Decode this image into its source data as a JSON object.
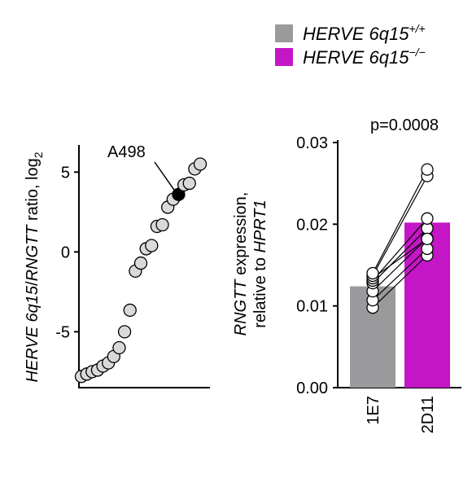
{
  "colors": {
    "wt": "#9a9a9c",
    "ko": "#c416c6",
    "point_fill": "#d9d9d9",
    "highlight": "#000000",
    "axis": "#000000"
  },
  "legend": {
    "items": [
      {
        "label": "HERVE 6q15",
        "sup": "+/+",
        "color_key": "wt"
      },
      {
        "label": "HERVE 6q15",
        "sup": "−/−",
        "color_key": "ko"
      }
    ]
  },
  "chart_data": [
    {
      "type": "scatter",
      "ylabel_parts": [
        {
          "text": "HERVE 6q15",
          "italic": true
        },
        {
          "text": "/",
          "italic": false
        },
        {
          "text": "RNGTT",
          "italic": true
        },
        {
          "text": " ratio, log",
          "italic": false
        },
        {
          "text": "2",
          "sub": true
        }
      ],
      "yticks": [
        {
          "v": 5,
          "label": "5"
        },
        {
          "v": 0,
          "label": "0"
        },
        {
          "v": -5,
          "label": "-5"
        }
      ],
      "ylim": [
        -8.5,
        6.7
      ],
      "values": [
        -7.8,
        -7.65,
        -7.5,
        -7.4,
        -7.15,
        -6.95,
        -6.55,
        -6.0,
        -5.0,
        -3.65,
        -1.2,
        -0.7,
        0.2,
        0.4,
        1.6,
        1.7,
        2.8,
        3.3,
        3.6,
        4.2,
        4.3,
        5.2,
        5.5
      ],
      "highlight_index": 18,
      "annotation": "A498"
    },
    {
      "type": "bar",
      "title": "p=0.0008",
      "ylabel_lines": [
        [
          {
            "text": "RNGTT",
            "italic": true
          },
          {
            "text": " expression,",
            "italic": false
          }
        ],
        [
          {
            "text": "relative to ",
            "italic": false
          },
          {
            "text": "HPRT1",
            "italic": true
          }
        ]
      ],
      "categories": [
        "1E7",
        "2D11"
      ],
      "values": [
        0.0124,
        0.0202
      ],
      "ylim": [
        0,
        0.03
      ],
      "yticks": [
        "0.00",
        "0.01",
        "0.02",
        "0.03"
      ],
      "pairs": [
        [
          0.0098,
          0.0162
        ],
        [
          0.0107,
          0.017
        ],
        [
          0.0118,
          0.0183
        ],
        [
          0.0128,
          0.0195
        ],
        [
          0.0131,
          0.0207
        ],
        [
          0.0134,
          0.0182
        ],
        [
          0.0137,
          0.0259
        ],
        [
          0.014,
          0.0267
        ]
      ]
    }
  ]
}
